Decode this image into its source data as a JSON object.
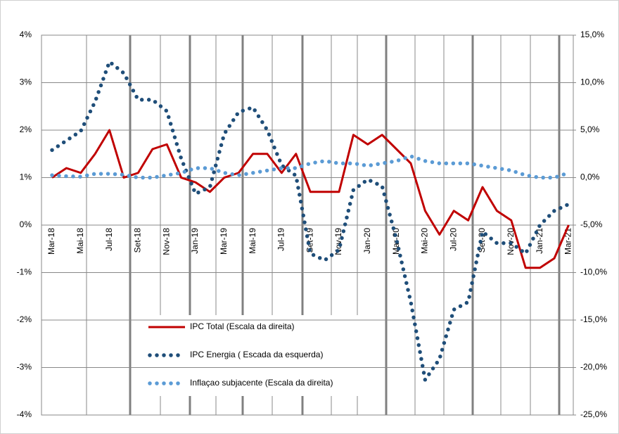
{
  "chart_data": {
    "type": "line",
    "categories": [
      "Mar-18",
      null,
      "Mai-18",
      null,
      "Jul-18",
      null,
      "Set-18",
      null,
      "Nov-18",
      null,
      "Jan-19",
      null,
      "Mar-19",
      null,
      "Mai-19",
      null,
      "Jul-19",
      null,
      "Set-19",
      null,
      "Nov-19",
      null,
      "Jan-20",
      null,
      "Mar-20",
      null,
      "Mai-20",
      null,
      "Jul-20",
      null,
      "Set-20",
      null,
      "Nov-20",
      null,
      "Jan-21",
      null,
      "Mar-21"
    ],
    "series": [
      {
        "name": "IPC Total (Escala da  direita)",
        "color": "#c00000",
        "style": "solid",
        "axis": "y",
        "values": [
          1.0,
          1.2,
          1.1,
          1.5,
          2.0,
          1.0,
          1.1,
          1.6,
          1.7,
          1.0,
          0.9,
          0.7,
          1.0,
          1.1,
          1.5,
          1.5,
          1.1,
          1.5,
          0.7,
          0.7,
          0.7,
          1.9,
          1.7,
          1.9,
          1.6,
          1.3,
          0.3,
          -0.2,
          0.3,
          0.1,
          0.8,
          0.3,
          0.1,
          -0.9,
          -0.9,
          -0.7,
          0.0
        ]
      },
      {
        "name": "IPC Energia ( Escada da esquerda)",
        "color": "#1f4e79",
        "style": "dotted",
        "axis": "y2",
        "values": [
          2.9,
          3.9,
          4.9,
          8.0,
          12.2,
          11.0,
          8.2,
          8.2,
          7.0,
          2.0,
          -1.7,
          -1.0,
          4.6,
          6.9,
          7.4,
          5.0,
          1.3,
          0.2,
          -8.0,
          -8.7,
          -7.6,
          -1.3,
          -0.2,
          -0.9,
          -6.5,
          -13.1,
          -21.3,
          -19.1,
          -13.9,
          -13.1,
          -5.7,
          -6.9,
          -6.9,
          -8.0,
          -5.0,
          -3.5,
          -2.8
        ]
      },
      {
        "name": "Inflaçao subjacente (Escala da direita)",
        "color": "#5b9bd5",
        "style": "dotted",
        "axis": "y",
        "values": [
          1.05,
          1.03,
          1.02,
          1.08,
          1.08,
          1.06,
          1.0,
          1.0,
          1.05,
          1.1,
          1.2,
          1.2,
          1.1,
          1.05,
          1.1,
          1.15,
          1.2,
          1.2,
          1.3,
          1.35,
          1.3,
          1.3,
          1.25,
          1.3,
          1.35,
          1.45,
          1.35,
          1.3,
          1.3,
          1.3,
          1.25,
          1.2,
          1.15,
          1.05,
          1.0,
          1.0,
          1.1
        ]
      }
    ],
    "ylim": [
      -4,
      4
    ],
    "yticks": [
      {
        "value": 4,
        "label": "4%"
      },
      {
        "value": 3,
        "label": "3%"
      },
      {
        "value": 2,
        "label": "2%"
      },
      {
        "value": 1,
        "label": "1%"
      },
      {
        "value": 0,
        "label": "0%"
      },
      {
        "value": -1,
        "label": "-1%"
      },
      {
        "value": -2,
        "label": "-2%"
      },
      {
        "value": -3,
        "label": "-3%"
      },
      {
        "value": -4,
        "label": "-4%"
      }
    ],
    "y2lim": [
      -25,
      15
    ],
    "y2ticks": [
      {
        "value": 15,
        "label": "15,0%"
      },
      {
        "value": 10,
        "label": "10,0%"
      },
      {
        "value": 5,
        "label": "5,0%"
      },
      {
        "value": 0,
        "label": "0,0%"
      },
      {
        "value": -5,
        "label": "-5,0%"
      },
      {
        "value": -10,
        "label": "-10,0%"
      },
      {
        "value": -15,
        "label": "-15,0%"
      },
      {
        "value": -20,
        "label": "-20,0%"
      },
      {
        "value": -25,
        "label": "-25,0%"
      }
    ],
    "grid": true
  }
}
